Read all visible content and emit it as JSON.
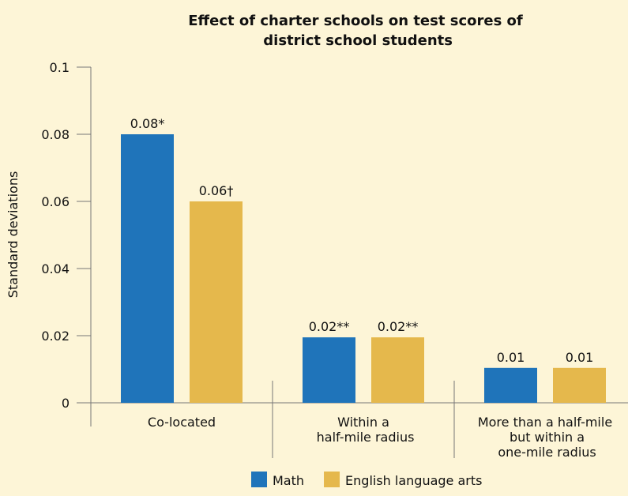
{
  "chart_data": {
    "type": "bar",
    "title": "Effect of charter schools on test scores of\ndistrict school students",
    "y_label": "Standard deviations",
    "categories": [
      "Co-located",
      "Within a\nhalf-mile radius",
      "More than a half-mile\nbut within a\none-mile radius"
    ],
    "series": [
      {
        "name": "Math",
        "color": "#1f74ba",
        "values": [
          0.08,
          0.0195,
          0.0104
        ],
        "value_labels": [
          "0.08*",
          "0.02**",
          "0.01"
        ]
      },
      {
        "name": "English language arts",
        "color": "#e5b84c",
        "values": [
          0.06,
          0.0195,
          0.0104
        ],
        "value_labels": [
          "0.06†",
          "0.02**",
          "0.01"
        ]
      }
    ],
    "ylim": [
      0,
      0.1
    ],
    "yticks": [
      0,
      0.02,
      0.04,
      0.06,
      0.08,
      0.1
    ],
    "legend": "bottom"
  }
}
